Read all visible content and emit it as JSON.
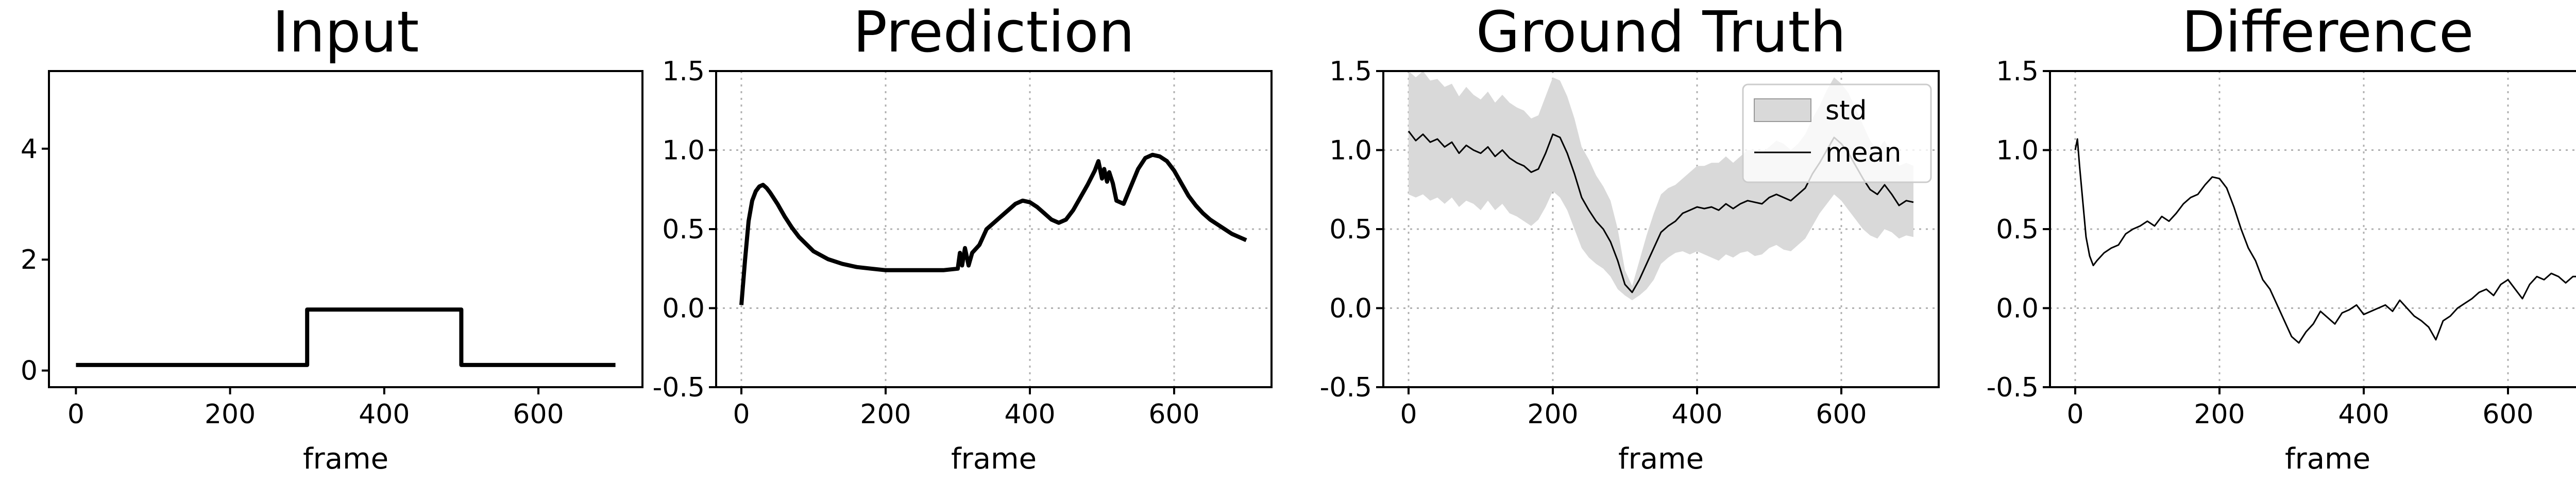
{
  "chart_data": [
    {
      "type": "line",
      "title": "Input",
      "xlabel": "frame",
      "ylabel": "",
      "xlim": [
        -35,
        735
      ],
      "ylim": [
        -0.3,
        5.4
      ],
      "xticks": [
        0,
        200,
        400,
        600
      ],
      "yticks": [
        0,
        2,
        4
      ],
      "grid": false,
      "series": [
        {
          "color": "#000000",
          "x": [
            0,
            300,
            300,
            500,
            500,
            700
          ],
          "y": [
            0.1,
            0.1,
            1.1,
            1.1,
            0.1,
            0.1
          ]
        }
      ]
    },
    {
      "type": "line",
      "title": "Prediction",
      "xlabel": "frame",
      "ylabel": "",
      "xlim": [
        -35,
        735
      ],
      "ylim": [
        -0.5,
        1.5
      ],
      "xticks": [
        0,
        200,
        400,
        600
      ],
      "yticks": [
        -0.5,
        0.0,
        0.5,
        1.0,
        1.5
      ],
      "grid": true,
      "series": [
        {
          "color": "#000000",
          "x": [
            0,
            5,
            10,
            15,
            20,
            25,
            30,
            35,
            40,
            50,
            60,
            70,
            80,
            100,
            120,
            140,
            160,
            180,
            200,
            220,
            250,
            280,
            300,
            303,
            306,
            310,
            315,
            320,
            330,
            340,
            350,
            360,
            370,
            380,
            390,
            400,
            410,
            420,
            430,
            440,
            450,
            460,
            470,
            480,
            490,
            495,
            500,
            503,
            507,
            510,
            515,
            520,
            530,
            540,
            550,
            560,
            570,
            580,
            590,
            600,
            610,
            620,
            630,
            640,
            650,
            660,
            670,
            680,
            690,
            700
          ],
          "y": [
            0.02,
            0.3,
            0.55,
            0.68,
            0.74,
            0.77,
            0.78,
            0.76,
            0.73,
            0.66,
            0.58,
            0.51,
            0.45,
            0.36,
            0.31,
            0.28,
            0.26,
            0.25,
            0.24,
            0.24,
            0.24,
            0.24,
            0.25,
            0.35,
            0.27,
            0.38,
            0.27,
            0.35,
            0.4,
            0.5,
            0.54,
            0.58,
            0.62,
            0.66,
            0.68,
            0.67,
            0.64,
            0.6,
            0.56,
            0.54,
            0.56,
            0.62,
            0.7,
            0.78,
            0.87,
            0.93,
            0.82,
            0.88,
            0.8,
            0.86,
            0.79,
            0.68,
            0.66,
            0.77,
            0.88,
            0.95,
            0.97,
            0.96,
            0.93,
            0.87,
            0.79,
            0.71,
            0.65,
            0.6,
            0.56,
            0.53,
            0.5,
            0.47,
            0.45,
            0.43
          ]
        }
      ]
    },
    {
      "type": "line",
      "title": "Ground Truth",
      "xlabel": "frame",
      "ylabel": "",
      "xlim": [
        -35,
        735
      ],
      "ylim": [
        -0.5,
        1.5
      ],
      "xticks": [
        0,
        200,
        400,
        600
      ],
      "yticks": [
        -0.5,
        0.0,
        0.5,
        1.0,
        1.5
      ],
      "grid": true,
      "legend": {
        "position": "top-right",
        "entries": [
          "std",
          "mean"
        ]
      },
      "series": [
        {
          "name": "mean",
          "color": "#000000",
          "x": [
            0,
            10,
            20,
            30,
            40,
            50,
            60,
            70,
            80,
            90,
            100,
            110,
            120,
            130,
            140,
            150,
            160,
            170,
            180,
            190,
            200,
            210,
            220,
            230,
            240,
            250,
            260,
            270,
            280,
            290,
            300,
            310,
            320,
            330,
            340,
            350,
            360,
            370,
            380,
            390,
            400,
            410,
            420,
            430,
            440,
            450,
            460,
            470,
            480,
            490,
            500,
            510,
            520,
            530,
            540,
            550,
            560,
            570,
            580,
            590,
            600,
            610,
            620,
            630,
            640,
            650,
            660,
            670,
            680,
            690,
            700
          ],
          "y": [
            1.12,
            1.06,
            1.1,
            1.05,
            1.07,
            1.02,
            1.05,
            0.98,
            1.03,
            1.0,
            0.98,
            1.02,
            0.96,
            1.0,
            0.95,
            0.92,
            0.9,
            0.86,
            0.88,
            0.98,
            1.1,
            1.08,
            0.98,
            0.85,
            0.7,
            0.62,
            0.55,
            0.5,
            0.42,
            0.3,
            0.15,
            0.1,
            0.18,
            0.28,
            0.38,
            0.48,
            0.52,
            0.55,
            0.6,
            0.62,
            0.64,
            0.63,
            0.64,
            0.62,
            0.66,
            0.63,
            0.66,
            0.68,
            0.67,
            0.66,
            0.7,
            0.72,
            0.7,
            0.68,
            0.72,
            0.76,
            0.85,
            0.92,
            1.0,
            1.08,
            1.04,
            0.98,
            0.9,
            0.82,
            0.75,
            0.72,
            0.78,
            0.72,
            0.65,
            0.68,
            0.67
          ]
        },
        {
          "name": "std",
          "type": "area",
          "color": "#d9d9d9",
          "x": [
            0,
            10,
            20,
            30,
            40,
            50,
            60,
            70,
            80,
            90,
            100,
            110,
            120,
            130,
            140,
            150,
            160,
            170,
            180,
            190,
            200,
            210,
            220,
            230,
            240,
            250,
            260,
            270,
            280,
            290,
            300,
            310,
            320,
            330,
            340,
            350,
            360,
            370,
            380,
            390,
            400,
            410,
            420,
            430,
            440,
            450,
            460,
            470,
            480,
            490,
            500,
            510,
            520,
            530,
            540,
            550,
            560,
            570,
            580,
            590,
            600,
            610,
            620,
            630,
            640,
            650,
            660,
            670,
            680,
            690,
            700
          ],
          "lower": [
            0.72,
            0.7,
            0.72,
            0.68,
            0.7,
            0.66,
            0.7,
            0.64,
            0.68,
            0.66,
            0.62,
            0.68,
            0.62,
            0.66,
            0.6,
            0.58,
            0.55,
            0.52,
            0.56,
            0.64,
            0.74,
            0.7,
            0.62,
            0.5,
            0.38,
            0.32,
            0.28,
            0.25,
            0.2,
            0.12,
            0.08,
            0.05,
            0.08,
            0.12,
            0.18,
            0.28,
            0.32,
            0.35,
            0.36,
            0.34,
            0.36,
            0.34,
            0.32,
            0.3,
            0.34,
            0.32,
            0.35,
            0.36,
            0.33,
            0.34,
            0.38,
            0.4,
            0.37,
            0.36,
            0.4,
            0.44,
            0.52,
            0.6,
            0.66,
            0.72,
            0.68,
            0.62,
            0.56,
            0.5,
            0.46,
            0.44,
            0.5,
            0.48,
            0.44,
            0.46,
            0.45
          ],
          "upper": [
            1.5,
            1.46,
            1.5,
            1.44,
            1.45,
            1.4,
            1.42,
            1.34,
            1.4,
            1.35,
            1.32,
            1.37,
            1.3,
            1.35,
            1.3,
            1.27,
            1.25,
            1.2,
            1.22,
            1.34,
            1.46,
            1.44,
            1.34,
            1.2,
            1.02,
            0.94,
            0.84,
            0.77,
            0.68,
            0.5,
            0.24,
            0.14,
            0.3,
            0.46,
            0.6,
            0.72,
            0.76,
            0.78,
            0.82,
            0.86,
            0.9,
            0.9,
            0.92,
            0.92,
            0.96,
            0.92,
            0.96,
            1.0,
            1.0,
            0.98,
            1.02,
            1.06,
            1.04,
            1.0,
            1.04,
            1.1,
            1.2,
            1.28,
            1.38,
            1.46,
            1.42,
            1.36,
            1.26,
            1.16,
            1.06,
            1.0,
            1.06,
            0.98,
            0.9,
            0.92,
            0.9
          ]
        }
      ]
    },
    {
      "type": "line",
      "title": "Difference",
      "xlabel": "frame",
      "ylabel": "",
      "xlim": [
        -35,
        735
      ],
      "ylim": [
        -0.5,
        1.5
      ],
      "xticks": [
        0,
        200,
        400,
        600
      ],
      "yticks": [
        -0.5,
        0.0,
        0.5,
        1.0,
        1.5
      ],
      "grid": true,
      "series": [
        {
          "color": "#000000",
          "x": [
            0,
            3,
            6,
            10,
            15,
            20,
            25,
            30,
            40,
            50,
            60,
            70,
            80,
            90,
            100,
            110,
            120,
            130,
            140,
            150,
            160,
            170,
            180,
            190,
            200,
            210,
            220,
            230,
            240,
            250,
            260,
            270,
            280,
            290,
            300,
            310,
            320,
            330,
            340,
            350,
            360,
            370,
            380,
            390,
            400,
            410,
            420,
            430,
            440,
            450,
            460,
            470,
            480,
            490,
            500,
            510,
            520,
            530,
            540,
            550,
            560,
            570,
            580,
            590,
            600,
            610,
            620,
            630,
            640,
            650,
            660,
            670,
            680,
            690,
            700
          ],
          "y": [
            1.0,
            1.07,
            0.9,
            0.7,
            0.45,
            0.33,
            0.27,
            0.3,
            0.35,
            0.38,
            0.4,
            0.47,
            0.5,
            0.52,
            0.55,
            0.52,
            0.58,
            0.55,
            0.6,
            0.66,
            0.7,
            0.72,
            0.78,
            0.83,
            0.82,
            0.76,
            0.64,
            0.5,
            0.38,
            0.3,
            0.18,
            0.12,
            0.02,
            -0.08,
            -0.18,
            -0.22,
            -0.15,
            -0.1,
            -0.02,
            -0.06,
            -0.1,
            -0.03,
            -0.01,
            0.02,
            -0.04,
            -0.02,
            0.0,
            0.02,
            -0.02,
            0.05,
            0.0,
            -0.05,
            -0.08,
            -0.12,
            -0.2,
            -0.08,
            -0.05,
            0.0,
            0.03,
            0.06,
            0.1,
            0.12,
            0.08,
            0.15,
            0.18,
            0.12,
            0.06,
            0.15,
            0.2,
            0.18,
            0.22,
            0.2,
            0.16,
            0.2,
            0.2
          ]
        }
      ]
    }
  ]
}
